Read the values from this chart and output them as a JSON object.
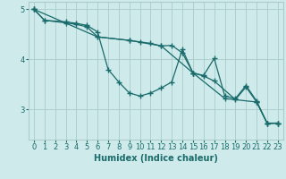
{
  "xlabel": "Humidex (Indice chaleur)",
  "xlim": [
    -0.5,
    23.5
  ],
  "ylim": [
    2.4,
    5.15
  ],
  "yticks": [
    3,
    4,
    5
  ],
  "xticks": [
    0,
    1,
    2,
    3,
    4,
    5,
    6,
    7,
    8,
    9,
    10,
    11,
    12,
    13,
    14,
    15,
    16,
    17,
    18,
    19,
    20,
    21,
    22,
    23
  ],
  "background_color": "#ceeaea",
  "grid_color": "#aacccc",
  "line_color": "#1a6b6b",
  "series": [
    {
      "x": [
        0,
        1,
        3,
        4,
        5,
        6,
        7,
        8,
        9,
        10,
        11,
        12,
        13,
        14,
        15,
        16,
        17,
        18,
        19,
        20,
        21,
        22,
        23
      ],
      "y": [
        5.0,
        4.78,
        4.75,
        4.72,
        4.68,
        4.55,
        3.8,
        3.55,
        3.33,
        3.27,
        3.33,
        3.43,
        3.55,
        4.2,
        3.73,
        3.68,
        4.02,
        3.27,
        3.22,
        3.48,
        3.17,
        2.72,
        2.73
      ]
    },
    {
      "x": [
        0,
        1,
        3,
        4,
        5,
        6,
        9,
        10,
        11,
        12,
        13,
        14,
        15,
        16,
        17,
        19,
        20,
        21,
        22,
        23
      ],
      "y": [
        5.0,
        4.78,
        4.73,
        4.7,
        4.65,
        4.45,
        4.38,
        4.35,
        4.32,
        4.27,
        4.28,
        4.13,
        3.73,
        3.67,
        3.57,
        3.2,
        3.45,
        3.15,
        2.73,
        2.73
      ]
    },
    {
      "x": [
        0,
        6,
        9,
        12,
        15,
        18,
        21,
        22,
        23
      ],
      "y": [
        5.0,
        4.45,
        4.38,
        4.27,
        3.73,
        3.22,
        3.15,
        2.72,
        2.73
      ]
    }
  ]
}
